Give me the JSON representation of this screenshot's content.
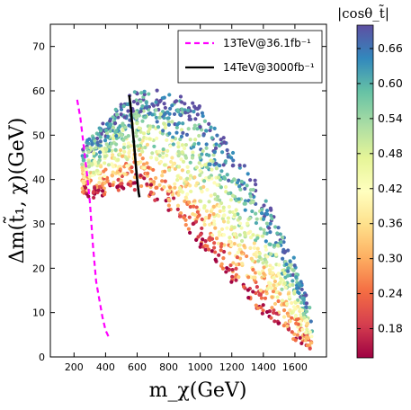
{
  "chart_data": {
    "type": "scatter",
    "xlabel": "m_χ(GeV)",
    "ylabel": "Δm(t̃₁, χ)(GeV)",
    "xlim": [
      50,
      1800
    ],
    "ylim": [
      0,
      75
    ],
    "xticks": [
      200,
      400,
      600,
      800,
      1000,
      1200,
      1400,
      1600
    ],
    "yticks": [
      0,
      10,
      20,
      30,
      40,
      50,
      60,
      70
    ],
    "colorbar": {
      "label": "|cosθ_t̃|",
      "range": [
        0.13,
        0.7
      ],
      "ticks": [
        0.18,
        0.24,
        0.3,
        0.36,
        0.42,
        0.48,
        0.54,
        0.6,
        0.66
      ],
      "colormap": "Spectral",
      "colors": [
        "#9e0142",
        "#d53e4f",
        "#f46d43",
        "#fdae61",
        "#fee08b",
        "#ffffbf",
        "#e6f598",
        "#abdda4",
        "#66c2a5",
        "#3288bd",
        "#5e4fa2"
      ]
    },
    "legend": {
      "placement": "top-right",
      "entries": [
        {
          "label": "13TeV@36.1fb⁻¹",
          "color": "#ff00ff",
          "style": "dashed"
        },
        {
          "label": "14TeV@3000fb⁻¹",
          "color": "#000000",
          "style": "solid"
        }
      ]
    },
    "scatter_envelope": {
      "x_range": [
        250,
        1710
      ],
      "upper_boundary": [
        [
          250,
          49
        ],
        [
          300,
          50
        ],
        [
          400,
          53
        ],
        [
          500,
          57
        ],
        [
          600,
          60
        ],
        [
          700,
          60
        ],
        [
          800,
          59
        ],
        [
          900,
          58
        ],
        [
          1000,
          56
        ],
        [
          1100,
          52
        ],
        [
          1200,
          47
        ],
        [
          1300,
          42
        ],
        [
          1400,
          37
        ],
        [
          1500,
          30
        ],
        [
          1600,
          22
        ],
        [
          1700,
          10
        ],
        [
          1710,
          5
        ]
      ],
      "lower_boundary": [
        [
          250,
          37
        ],
        [
          300,
          36
        ],
        [
          400,
          37
        ],
        [
          500,
          38
        ],
        [
          600,
          38
        ],
        [
          700,
          36
        ],
        [
          800,
          33
        ],
        [
          900,
          29
        ],
        [
          1000,
          25
        ],
        [
          1100,
          21
        ],
        [
          1200,
          17
        ],
        [
          1300,
          13
        ],
        [
          1400,
          9
        ],
        [
          1500,
          6
        ],
        [
          1600,
          3.5
        ],
        [
          1700,
          2
        ],
        [
          1710,
          3
        ]
      ],
      "color_trend": "low |cosθ| (red) along lower edge, high |cosθ| (blue) toward upper edge"
    },
    "series": [
      {
        "name": "13TeV@36.1fb⁻¹",
        "style": "dashed",
        "color": "#ff00ff",
        "points": [
          [
            220,
            58
          ],
          [
            240,
            54
          ],
          [
            260,
            48
          ],
          [
            280,
            42
          ],
          [
            300,
            35
          ],
          [
            320,
            25
          ],
          [
            340,
            17
          ],
          [
            360,
            13
          ],
          [
            380,
            9
          ],
          [
            400,
            6
          ],
          [
            420,
            4.5
          ]
        ]
      },
      {
        "name": "14TeV@3000fb⁻¹",
        "style": "solid",
        "color": "#000000",
        "points": [
          [
            550,
            59
          ],
          [
            560,
            56
          ],
          [
            570,
            52
          ],
          [
            580,
            48
          ],
          [
            590,
            44
          ],
          [
            600,
            40
          ],
          [
            610,
            37
          ],
          [
            615,
            36
          ]
        ]
      }
    ]
  }
}
